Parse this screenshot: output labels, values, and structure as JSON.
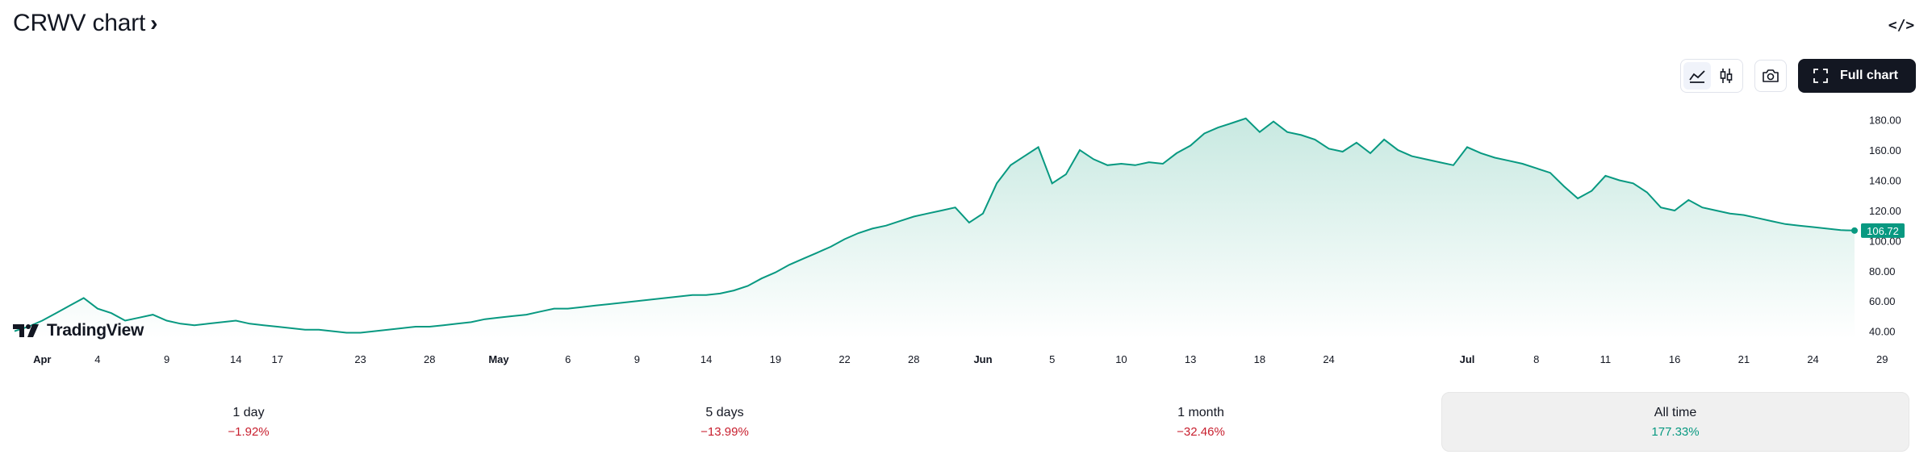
{
  "header": {
    "title": "CRWV chart",
    "title_chevron": "›",
    "embed_icon": "code-brackets-icon"
  },
  "toolbar": {
    "chart_type_buttons": [
      {
        "icon": "area-chart-icon",
        "active": true
      },
      {
        "icon": "candles-icon",
        "active": false
      }
    ],
    "snapshot_icon": "camera-icon",
    "full_chart_label": "Full chart",
    "full_chart_icon": "fullscreen-icon"
  },
  "logo": {
    "text": "TradingView"
  },
  "colors": {
    "line": "#089981",
    "area_top": "#c8e9e1",
    "area_bottom": "#ffffff",
    "neg": "#c8202f",
    "pos": "#089981"
  },
  "chart_data": {
    "type": "area",
    "symbol": "CRWV",
    "last_price": "106.72",
    "ylim": [
      35,
      190
    ],
    "y_ticks": [
      "180.00",
      "160.00",
      "140.00",
      "120.00",
      "100.00",
      "80.00",
      "60.00",
      "40.00"
    ],
    "y_tick_values": [
      180,
      160,
      140,
      120,
      100,
      80,
      60,
      40
    ],
    "x_tick_labels": [
      "Apr",
      "4",
      "9",
      "14",
      "17",
      "23",
      "28",
      "May",
      "6",
      "9",
      "14",
      "19",
      "22",
      "28",
      "Jun",
      "5",
      "10",
      "13",
      "18",
      "24",
      "Jul",
      "8",
      "11",
      "16",
      "21",
      "24",
      "29"
    ],
    "x_tick_index": [
      2,
      6,
      11,
      16,
      19,
      25,
      30,
      35,
      40,
      45,
      50,
      55,
      60,
      65,
      70,
      75,
      80,
      85,
      90,
      95,
      105,
      110,
      115,
      120,
      125,
      130,
      135
    ],
    "bold_ticks": [
      "Apr",
      "May",
      "Jun",
      "Jul"
    ],
    "values": [
      40,
      43,
      47,
      52,
      57,
      62,
      55,
      52,
      47,
      49,
      51,
      47,
      45,
      44,
      45,
      46,
      47,
      45,
      44,
      43,
      42,
      41,
      41,
      40,
      39,
      39,
      40,
      41,
      42,
      43,
      43,
      44,
      45,
      46,
      48,
      49,
      50,
      51,
      53,
      55,
      55,
      56,
      57,
      58,
      59,
      60,
      61,
      62,
      63,
      64,
      64,
      65,
      67,
      70,
      75,
      79,
      84,
      88,
      92,
      96,
      101,
      105,
      108,
      110,
      113,
      116,
      118,
      120,
      122,
      112,
      118,
      138,
      150,
      156,
      162,
      138,
      144,
      160,
      154,
      150,
      151,
      150,
      152,
      151,
      158,
      163,
      171,
      175,
      178,
      181,
      172,
      179,
      172,
      170,
      167,
      161,
      159,
      165,
      158,
      167,
      160,
      156,
      154,
      152,
      150,
      162,
      158,
      155,
      153,
      151,
      148,
      145,
      136,
      128,
      133,
      143,
      140,
      138,
      132,
      122,
      120,
      127,
      122,
      120,
      118,
      117,
      115,
      113,
      111,
      110,
      109,
      108,
      107,
      106.72
    ]
  },
  "periods": [
    {
      "label": "1 day",
      "change": "−1.92%",
      "trend": "neg",
      "selected": false
    },
    {
      "label": "5 days",
      "change": "−13.99%",
      "trend": "neg",
      "selected": false
    },
    {
      "label": "1 month",
      "change": "−32.46%",
      "trend": "neg",
      "selected": false
    },
    {
      "label": "All time",
      "change": "177.33%",
      "trend": "pos",
      "selected": true
    }
  ]
}
